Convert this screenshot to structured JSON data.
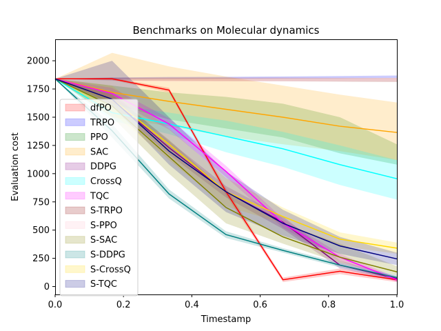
{
  "chart_data": {
    "type": "line",
    "title": "Benchmarks on Molecular dynamics",
    "xlabel": "Timestamp",
    "ylabel": "Evaluation cost",
    "xlim": [
      0,
      1
    ],
    "ylim": [
      -70,
      2190
    ],
    "x": [
      0,
      0.1667,
      0.3333,
      0.5,
      0.6667,
      0.8333,
      1.0
    ],
    "xticks": [
      0,
      0.2,
      0.4,
      0.6,
      0.8,
      1.0
    ],
    "xtick_labels": [
      "0.0",
      "0.2",
      "0.4",
      "0.6",
      "0.8",
      "1.0"
    ],
    "yticks": [
      0,
      250,
      500,
      750,
      1000,
      1250,
      1500,
      1750,
      2000
    ],
    "ytick_labels": [
      "0",
      "250",
      "500",
      "750",
      "1000",
      "1250",
      "1500",
      "1750",
      "2000"
    ],
    "legend_position": "center-left",
    "series": [
      {
        "name": "dfPO",
        "color": "#ff0000",
        "fill": "#ff0000",
        "values": [
          1840,
          1840,
          1740,
          840,
          60,
          135,
          60
        ],
        "lower": [
          1840,
          1830,
          1720,
          810,
          40,
          110,
          40
        ],
        "upper": [
          1840,
          1850,
          1760,
          870,
          80,
          160,
          80
        ]
      },
      {
        "name": "TRPO",
        "color": "#0000ff",
        "fill": "#0000ff",
        "draw_line": false,
        "values": [
          1840,
          1845,
          1848,
          1850,
          1852,
          1855,
          1858
        ],
        "lower": [
          1840,
          1838,
          1840,
          1842,
          1843,
          1845,
          1847
        ],
        "upper": [
          1840,
          1852,
          1856,
          1858,
          1861,
          1865,
          1869
        ]
      },
      {
        "name": "PPO",
        "color": "#008000",
        "fill": "#008000",
        "draw_line": false,
        "values": [
          1840,
          1700,
          1600,
          1530,
          1470,
          1330,
          1150
        ],
        "lower": [
          1840,
          1620,
          1480,
          1400,
          1320,
          1180,
          1080
        ],
        "upper": [
          1840,
          1780,
          1720,
          1680,
          1620,
          1500,
          1260
        ]
      },
      {
        "name": "SAC",
        "color": "#ffa500",
        "fill": "#ffa500",
        "values": [
          1840,
          1720,
          1640,
          1570,
          1500,
          1420,
          1365
        ],
        "lower": [
          1840,
          1500,
          1420,
          1330,
          1260,
          1200,
          1120
        ],
        "upper": [
          1840,
          2070,
          1950,
          1860,
          1780,
          1700,
          1630
        ]
      },
      {
        "name": "DDPG",
        "color": "#800080",
        "fill": "#800080",
        "values": [
          1840,
          1660,
          1230,
          840,
          570,
          190,
          70
        ],
        "lower": [
          1840,
          1600,
          1170,
          790,
          510,
          160,
          50
        ],
        "upper": [
          1840,
          1720,
          1290,
          890,
          620,
          230,
          90
        ]
      },
      {
        "name": "CrossQ",
        "color": "#00ffff",
        "fill": "#00ffff",
        "values": [
          1840,
          1540,
          1440,
          1330,
          1220,
          1080,
          955
        ],
        "lower": [
          1840,
          1470,
          1350,
          1190,
          1060,
          900,
          770
        ],
        "upper": [
          1840,
          1620,
          1540,
          1470,
          1370,
          1250,
          1120
        ]
      },
      {
        "name": "TQC",
        "color": "#ff00ff",
        "fill": "#ff00ff",
        "values": [
          1840,
          1710,
          1440,
          1020,
          560,
          260,
          60
        ],
        "lower": [
          1840,
          1660,
          1390,
          970,
          520,
          230,
          40
        ],
        "upper": [
          1840,
          1760,
          1490,
          1070,
          600,
          290,
          80
        ]
      },
      {
        "name": "S-TRPO",
        "color": "#8b0000",
        "fill": "#8b0000",
        "draw_line": false,
        "values": [
          1840,
          1837,
          1836,
          1835,
          1834,
          1832,
          1830
        ],
        "lower": [
          1840,
          1825,
          1822,
          1820,
          1818,
          1815,
          1812
        ],
        "upper": [
          1840,
          1849,
          1850,
          1850,
          1850,
          1849,
          1848
        ]
      },
      {
        "name": "S-PPO",
        "color": "#ffc0cb",
        "fill": "#ffc0cb",
        "draw_line": false,
        "values": [
          1840,
          1830,
          1828,
          1830,
          1832,
          1834,
          1836
        ],
        "lower": [
          1840,
          1820,
          1815,
          1818,
          1820,
          1822,
          1824
        ],
        "upper": [
          1840,
          1840,
          1841,
          1842,
          1844,
          1846,
          1848
        ]
      },
      {
        "name": "S-SAC",
        "color": "#808000",
        "fill": "#808000",
        "values": [
          1840,
          1600,
          1150,
          700,
          440,
          260,
          130
        ],
        "lower": [
          1840,
          1500,
          1000,
          560,
          380,
          210,
          100
        ],
        "upper": [
          1840,
          1700,
          1300,
          840,
          560,
          380,
          180
        ]
      },
      {
        "name": "S-DDPG",
        "color": "#008080",
        "fill": "#008080",
        "values": [
          1840,
          1380,
          820,
          460,
          320,
          190,
          80
        ],
        "lower": [
          1840,
          1320,
          780,
          430,
          300,
          170,
          60
        ],
        "upper": [
          1840,
          1440,
          860,
          490,
          340,
          210,
          100
        ]
      },
      {
        "name": "S-CrossQ",
        "color": "#ffd700",
        "fill": "#ffd700",
        "values": [
          1840,
          1660,
          1260,
          840,
          620,
          420,
          340
        ],
        "lower": [
          1840,
          1540,
          1120,
          710,
          560,
          360,
          290
        ],
        "upper": [
          1840,
          1780,
          1400,
          960,
          700,
          480,
          390
        ]
      },
      {
        "name": "S-TQC",
        "color": "#000080",
        "fill": "#000080",
        "values": [
          1840,
          1660,
          1200,
          840,
          560,
          360,
          245
        ],
        "lower": [
          1840,
          1600,
          1080,
          660,
          450,
          290,
          190
        ],
        "upper": [
          1840,
          2000,
          1500,
          1020,
          680,
          440,
          300
        ]
      }
    ]
  }
}
